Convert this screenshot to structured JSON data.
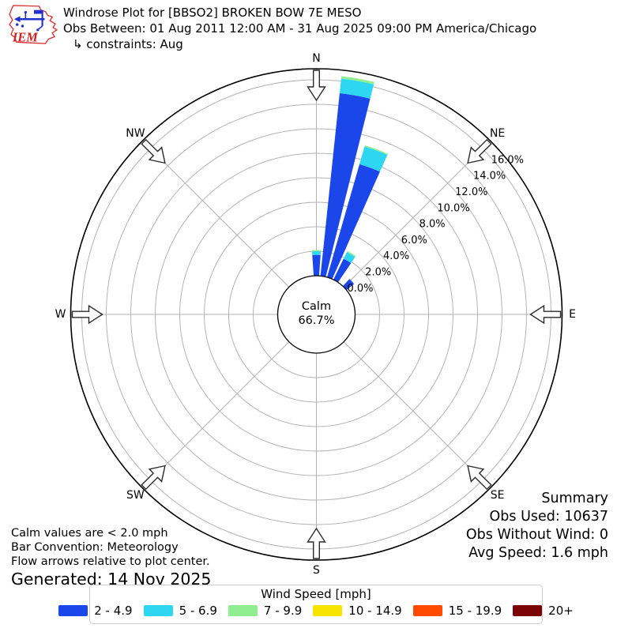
{
  "header": {
    "logo_text": "IEM",
    "title": "Windrose Plot for [BBSO2] BROKEN BOW 7E MESO",
    "subtitle": "Obs Between: 01 Aug 2011 12:00 AM - 31 Aug 2025 09:00 PM America/Chicago",
    "constraints": "↳ constraints: Aug"
  },
  "chart_data": {
    "type": "bar",
    "subtype": "windrose",
    "title": "Windrose Plot for [BBSO2] BROKEN BOW 7E MESO",
    "units": "%",
    "direction_convention": "meteorology, 0 deg = N, clockwise",
    "sector_width_deg": 10,
    "rings_pct": [
      0,
      2,
      4,
      6,
      8,
      10,
      12,
      14,
      16
    ],
    "ring_labels": [
      "0.0%",
      "2.0%",
      "4.0%",
      "6.0%",
      "8.0%",
      "10.0%",
      "12.0%",
      "14.0%",
      "16.0%"
    ],
    "compass_labels": [
      "N",
      "NE",
      "E",
      "SE",
      "S",
      "SW",
      "W",
      "NW"
    ],
    "calm": {
      "label": "Calm",
      "display": "66.7%",
      "value_pct": 66.7
    },
    "speed_bins": [
      {
        "label": "2 - 4.9",
        "color": "#1b46e9"
      },
      {
        "label": "5 - 6.9",
        "color": "#2fd6f2"
      },
      {
        "label": "7 - 9.9",
        "color": "#90ee90"
      },
      {
        "label": "10 - 14.9",
        "color": "#f7e400"
      },
      {
        "label": "15 - 19.9",
        "color": "#ff4a00"
      },
      {
        "label": "20+",
        "color": "#7a0403"
      }
    ],
    "bars": [
      {
        "dir_deg": 0,
        "segments_pct": [
          1.7,
          0.3,
          0.1,
          0,
          0,
          0
        ]
      },
      {
        "dir_deg": 10,
        "segments_pct": [
          15.0,
          1.2,
          0.2,
          0,
          0,
          0
        ]
      },
      {
        "dir_deg": 20,
        "segments_pct": [
          9.6,
          1.5,
          0.1,
          0,
          0,
          0
        ]
      },
      {
        "dir_deg": 30,
        "segments_pct": [
          1.9,
          0.6,
          0.1,
          0,
          0,
          0
        ]
      },
      {
        "dir_deg": 47,
        "segments_pct": [
          0.8,
          0,
          0,
          0,
          0,
          0
        ]
      }
    ],
    "legend_position": "bottom",
    "grid": true,
    "axis_max_pct": 16.9
  },
  "notes": {
    "calm": "Calm values are < 2.0 mph",
    "bar_convention": "Bar Convention: Meteorology",
    "flow_arrows": "Flow arrows relative to plot center.",
    "generated": "Generated: 14 Nov 2025"
  },
  "summary": {
    "title": "Summary",
    "obs_used": "Obs Used: 10637",
    "obs_without_wind": "Obs Without Wind: 0",
    "avg_speed": "Avg Speed: 1.6 mph"
  },
  "legend": {
    "title": "Wind Speed [mph]"
  }
}
